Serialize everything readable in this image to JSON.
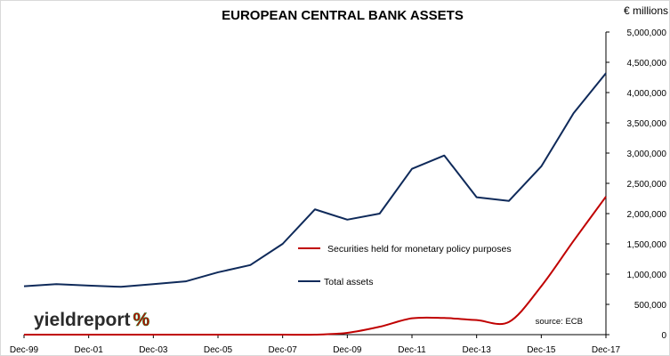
{
  "header": {
    "title": "EUROPEAN CENTRAL BANK ASSETS",
    "unit": "€ millions"
  },
  "logo": {
    "text": "yieldreport",
    "symbol": "%"
  },
  "source": "source: ECB",
  "colors": {
    "total_assets": "#0f2a5a",
    "securities": "#c00000",
    "logo_green": "#2e8b2e",
    "logo_red": "#c00000",
    "axis": "#000000",
    "frame": "#d9d9d9"
  },
  "chart_data": {
    "type": "line",
    "title": "EUROPEAN CENTRAL BANK ASSETS",
    "ylabel": "€ millions",
    "xlabel": "",
    "x_tick_labels": [
      "Dec-99",
      "Dec-01",
      "Dec-03",
      "Dec-05",
      "Dec-07",
      "Dec-09",
      "Dec-11",
      "Dec-13",
      "Dec-15",
      "Dec-17"
    ],
    "y_tick_labels": [
      "0",
      "500,000",
      "1,000,000",
      "1,500,000",
      "2,000,000",
      "2,500,000",
      "3,000,000",
      "3,500,000",
      "4,000,000",
      "4,500,000",
      "5,000,000"
    ],
    "ylim": [
      0,
      5000000
    ],
    "y_axis_position": "right",
    "grid": false,
    "legend_position": "center-right",
    "x": [
      "Dec-99",
      "Dec-00",
      "Dec-01",
      "Dec-02",
      "Dec-03",
      "Dec-04",
      "Dec-05",
      "Dec-06",
      "Dec-07",
      "Dec-08",
      "Dec-09",
      "Dec-10",
      "Dec-11",
      "Dec-12",
      "Dec-13",
      "Dec-14",
      "Dec-15",
      "Dec-16",
      "Dec-17"
    ],
    "series": [
      {
        "name": "Total assets",
        "values": [
          800000,
          835000,
          810000,
          790000,
          835000,
          880000,
          1030000,
          1150000,
          1500000,
          2070000,
          1900000,
          2000000,
          2740000,
          2960000,
          2270000,
          2210000,
          2780000,
          3660000,
          4320000
        ]
      },
      {
        "name": "Securities held for monetary policy purposes",
        "values": [
          0,
          0,
          0,
          0,
          0,
          0,
          0,
          0,
          0,
          0,
          30000,
          130000,
          270000,
          275000,
          240000,
          210000,
          800000,
          1550000,
          2280000
        ]
      }
    ]
  }
}
